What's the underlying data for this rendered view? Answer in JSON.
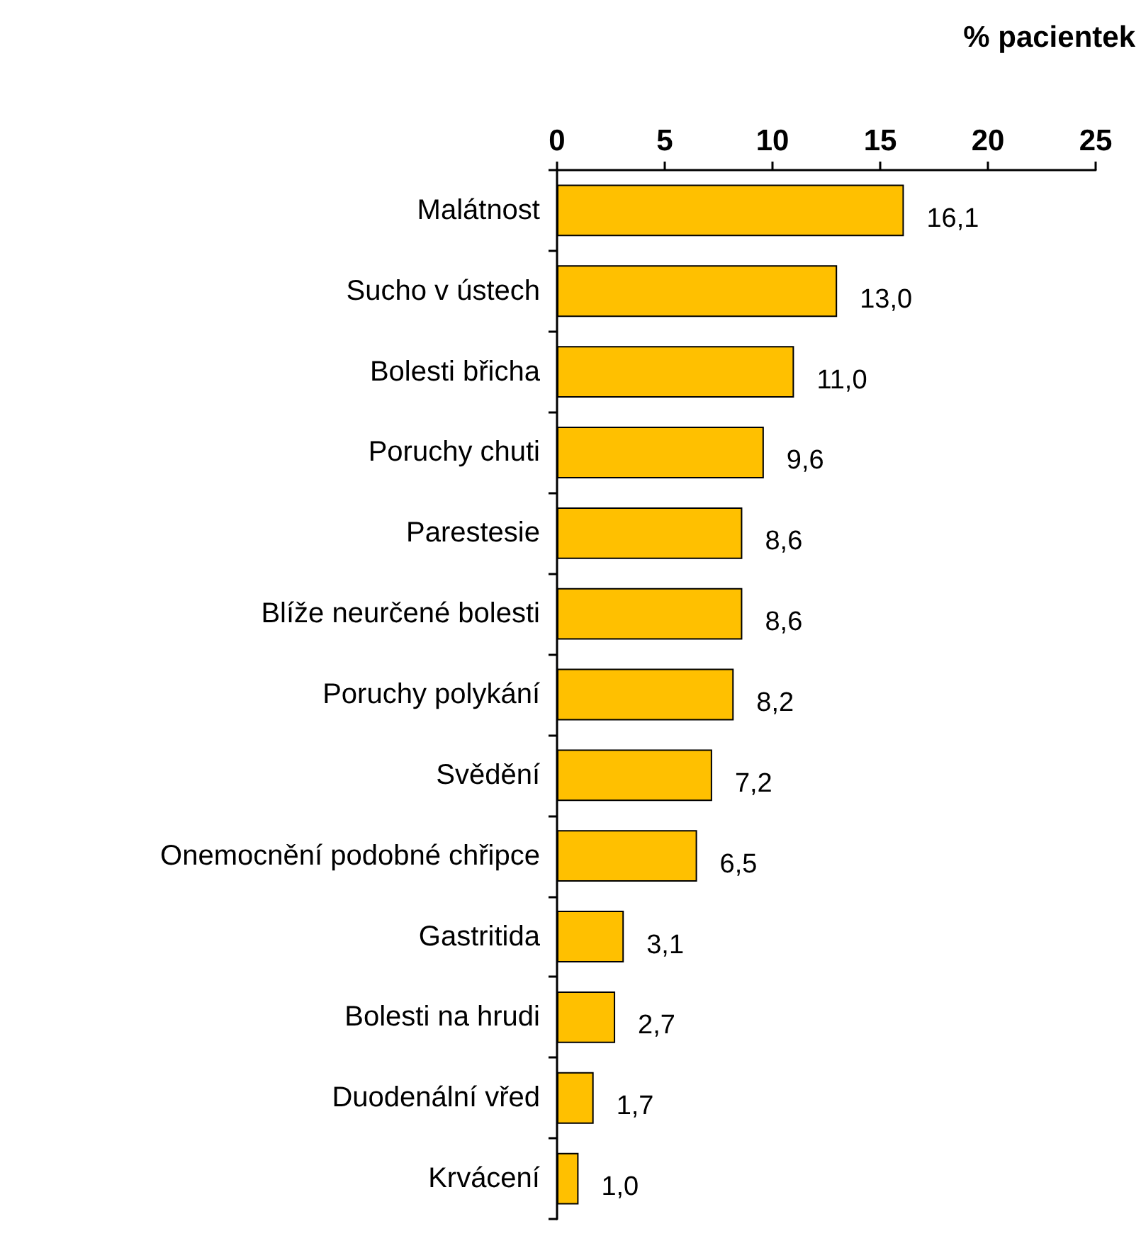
{
  "chart_data": {
    "type": "bar",
    "orientation": "horizontal",
    "xlabel": "% pacientek",
    "categories": [
      "Malátnost",
      "Sucho v ústech",
      "Bolesti břicha",
      "Poruchy chuti",
      "Parestesie",
      "Blíže neurčené bolesti",
      "Poruchy polykání",
      "Svědění",
      "Onemocnění podobné chřipce",
      "Gastritida",
      "Bolesti na hrudi",
      "Duodenální vřed",
      "Krvácení"
    ],
    "values": [
      16.1,
      13.0,
      11.0,
      9.6,
      8.6,
      8.6,
      8.2,
      7.2,
      6.5,
      3.1,
      2.7,
      1.7,
      1.0
    ],
    "value_labels": [
      "16,1",
      "13,0",
      "11,0",
      "9,6",
      "8,6",
      "8,6",
      "8,2",
      "7,2",
      "6,5",
      "3,1",
      "2,7",
      "1,7",
      "1,0"
    ],
    "color": "#ffc000",
    "xlim": [
      0,
      25
    ],
    "xticks": [
      0,
      5,
      10,
      15,
      20,
      25
    ],
    "grid": false
  }
}
